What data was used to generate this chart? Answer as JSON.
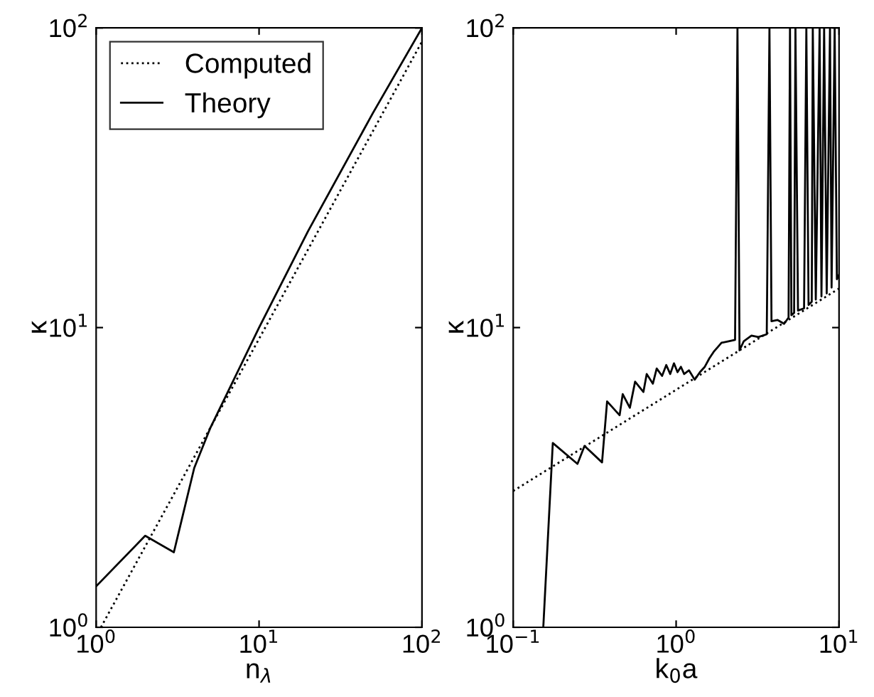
{
  "chart_data": [
    {
      "type": "line",
      "xlabel": "n$_{λ}$",
      "ylabel": "κ",
      "log": "xy",
      "legend": "top left",
      "grid": false,
      "xlim": [
        1,
        100
      ],
      "ylim": [
        1,
        100
      ],
      "xticks": [
        {
          "value": 1,
          "label": "10$^{0}$"
        },
        {
          "value": 10,
          "label": "10$^{1}$"
        },
        {
          "value": 100,
          "label": "10$^{2}$"
        }
      ],
      "yticks": [
        {
          "value": 1,
          "label": "10$^{0}$"
        },
        {
          "value": 10,
          "label": "10$^{1}$"
        },
        {
          "value": 100,
          "label": "10$^{2}$"
        }
      ],
      "series": [
        {
          "name": "Computed",
          "color": "#000000",
          "line_style": "dotted",
          "x": [
            1.07,
            100
          ],
          "values": [
            1.0,
            90
          ]
        },
        {
          "name": "Theory",
          "color": "#000000",
          "line_style": "solid",
          "x": [
            1,
            2,
            3,
            4,
            5,
            10,
            20,
            50,
            100
          ],
          "values": [
            1.37,
            2.02,
            1.78,
            3.4,
            4.6,
            10,
            21,
            52,
            100
          ]
        }
      ]
    },
    {
      "type": "line",
      "xlabel": "k$_{0}$a",
      "ylabel": "κ",
      "log": "xy",
      "legend": false,
      "grid": false,
      "xlim": [
        0.1,
        10
      ],
      "ylim": [
        1,
        100
      ],
      "xticks": [
        {
          "value": 0.1,
          "label": "10$^{−1}$"
        },
        {
          "value": 1,
          "label": "10$^{0}$"
        },
        {
          "value": 10,
          "label": "10$^{1}$"
        }
      ],
      "yticks": [
        {
          "value": 1,
          "label": "10$^{0}$"
        },
        {
          "value": 10,
          "label": "10$^{1}$"
        },
        {
          "value": 100,
          "label": "10$^{2}$"
        }
      ],
      "series": [
        {
          "color": "#000000",
          "line_style": "dotted",
          "x": [
            0.1,
            10
          ],
          "values": [
            2.85,
            13.5
          ]
        },
        {
          "color": "#000000",
          "line_style": "solid",
          "x": [
            0.153,
            0.175,
            0.248,
            0.274,
            0.351,
            0.377,
            0.45,
            0.47,
            0.52,
            0.56,
            0.63,
            0.66,
            0.72,
            0.76,
            0.82,
            0.87,
            0.92,
            0.97,
            1.02,
            1.07,
            1.12,
            1.2,
            1.3,
            1.4,
            1.5,
            1.6,
            1.7,
            1.8,
            1.9,
            2.1,
            2.3,
            2.38,
            2.45,
            2.6,
            2.9,
            3.2,
            3.6,
            3.74,
            3.85,
            4.2,
            4.6,
            4.9,
            5.0,
            5.1,
            5.3,
            5.4,
            5.6,
            6.1,
            6.3,
            6.5,
            6.8,
            6.9,
            7.2,
            7.6,
            7.8,
            8.1,
            8.4,
            8.8,
            9.0,
            9.4,
            9.7,
            10
          ],
          "values": [
            1.0,
            4.12,
            3.51,
            4.03,
            3.55,
            5.67,
            5.1,
            6.0,
            5.4,
            6.6,
            6.1,
            7.0,
            6.5,
            7.3,
            6.9,
            7.5,
            7.0,
            7.6,
            7.1,
            7.4,
            7.0,
            7.2,
            6.7,
            7.1,
            7.4,
            7.9,
            8.3,
            8.6,
            8.9,
            9.0,
            9.1,
            100,
            8.4,
            9.0,
            9.4,
            9.3,
            9.5,
            100,
            10.5,
            10.6,
            10.3,
            10.8,
            100,
            11.0,
            11.2,
            100,
            11.4,
            11.6,
            100,
            11.9,
            12.2,
            100,
            12.4,
            100,
            12.7,
            100,
            13.0,
            100,
            13.6,
            100,
            14.5,
            15.0
          ]
        }
      ]
    }
  ]
}
